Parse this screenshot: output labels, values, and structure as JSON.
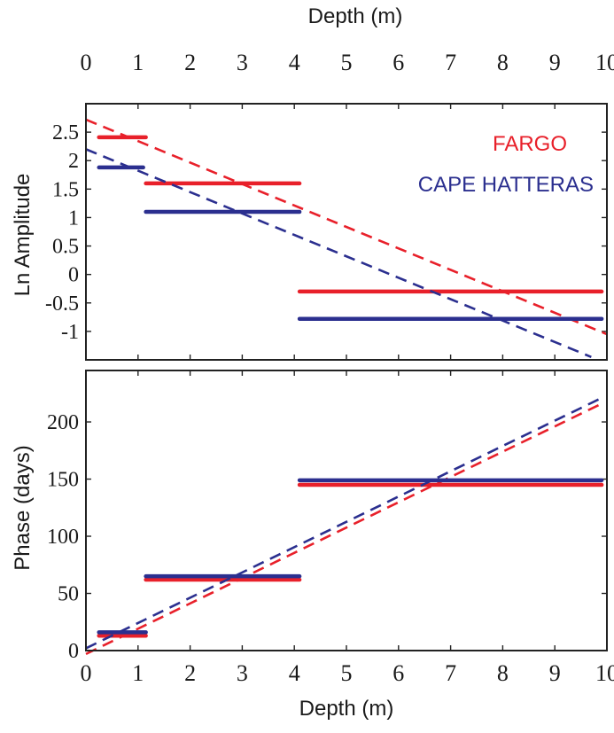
{
  "chart_data": [
    {
      "type": "line",
      "panel": "top",
      "xlabel": "Depth (m)",
      "xlabel_position": "top",
      "ylabel": "Ln Amplitude",
      "xlim": [
        0,
        10
      ],
      "ylim": [
        -1.5,
        3.0
      ],
      "x_ticks": [
        0,
        1,
        2,
        3,
        4,
        5,
        6,
        7,
        8,
        9,
        10
      ],
      "x_tick_labels": [
        "0",
        "1",
        "2",
        "3",
        "4",
        "5",
        "6",
        "7",
        "8",
        "9",
        "10"
      ],
      "y_ticks": [
        2.5,
        2,
        1.5,
        1,
        0.5,
        0,
        -0.5,
        -1
      ],
      "y_tick_labels": [
        "2.5",
        "2",
        "1.5",
        "1",
        "0.5",
        "0",
        "-0.5",
        "-1"
      ],
      "legend": {
        "placement": "right",
        "entries": [
          {
            "label": "FARGO",
            "color": "#e8202a"
          },
          {
            "label": "CAPE HATTERAS",
            "color": "#2b2f8f"
          }
        ]
      },
      "series": [
        {
          "name": "FARGO",
          "color": "#e8202a",
          "trend": {
            "x": [
              0,
              10
            ],
            "y": [
              2.72,
              -1.05
            ]
          },
          "segments": [
            {
              "x": [
                0.25,
                1.15
              ],
              "y": 2.41
            },
            {
              "x": [
                1.15,
                4.1
              ],
              "y": 1.6
            },
            {
              "x": [
                4.1,
                9.9
              ],
              "y": -0.3
            }
          ]
        },
        {
          "name": "CAPE HATTERAS",
          "color": "#2b2f8f",
          "trend": {
            "x": [
              0,
              9.7
            ],
            "y": [
              2.2,
              -1.45
            ]
          },
          "segments": [
            {
              "x": [
                0.25,
                1.1
              ],
              "y": 1.88
            },
            {
              "x": [
                1.15,
                4.1
              ],
              "y": 1.1
            },
            {
              "x": [
                4.1,
                9.9
              ],
              "y": -0.78
            }
          ]
        }
      ]
    },
    {
      "type": "line",
      "panel": "bottom",
      "xlabel": "Depth (m)",
      "ylabel": "Phase (days)",
      "xlim": [
        0,
        10
      ],
      "ylim": [
        0,
        245
      ],
      "x_ticks": [
        0,
        1,
        2,
        3,
        4,
        5,
        6,
        7,
        8,
        9,
        10
      ],
      "x_tick_labels": [
        "0",
        "1",
        "2",
        "3",
        "4",
        "5",
        "6",
        "7",
        "8",
        "9",
        "10"
      ],
      "y_ticks": [
        0,
        50,
        100,
        150,
        200
      ],
      "y_tick_labels": [
        "0",
        "50",
        "100",
        "150",
        "200"
      ],
      "series": [
        {
          "name": "FARGO",
          "color": "#e8202a",
          "trend": {
            "x": [
              0,
              9.9
            ],
            "y": [
              -3,
              216
            ]
          },
          "segments": [
            {
              "x": [
                0.25,
                1.15
              ],
              "y": 13
            },
            {
              "x": [
                1.15,
                4.1
              ],
              "y": 62
            },
            {
              "x": [
                4.1,
                9.9
              ],
              "y": 145
            }
          ]
        },
        {
          "name": "CAPE HATTERAS",
          "color": "#2b2f8f",
          "trend": {
            "x": [
              0,
              9.9
            ],
            "y": [
              2,
              221
            ]
          },
          "segments": [
            {
              "x": [
                0.25,
                1.15
              ],
              "y": 16
            },
            {
              "x": [
                1.15,
                4.1
              ],
              "y": 65
            },
            {
              "x": [
                4.1,
                9.9
              ],
              "y": 149
            }
          ]
        }
      ]
    }
  ]
}
